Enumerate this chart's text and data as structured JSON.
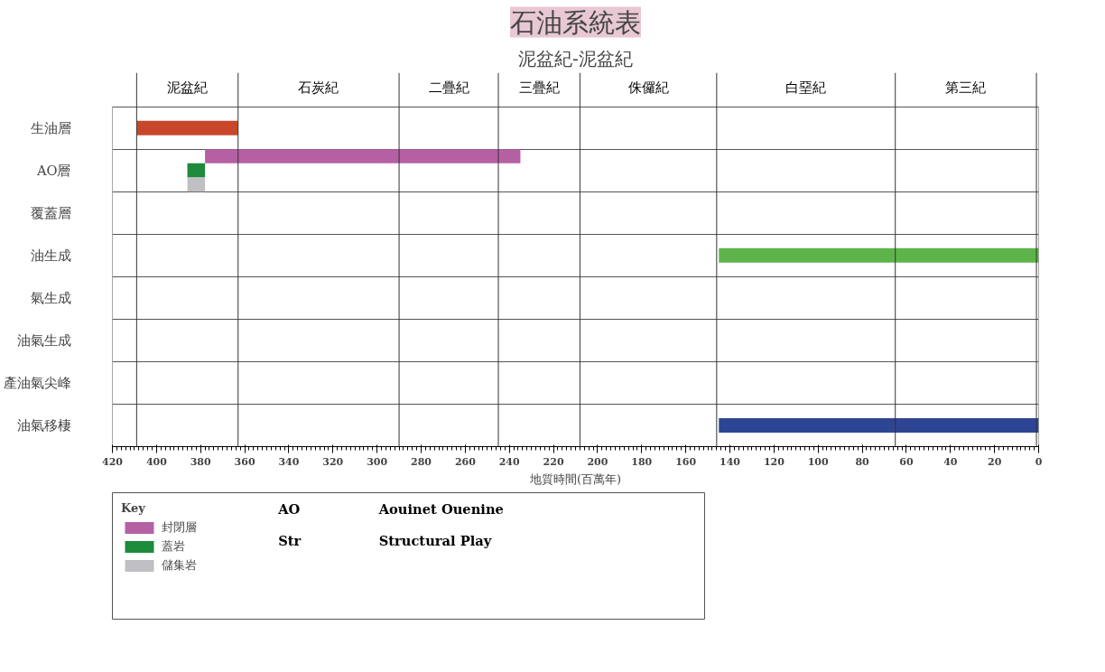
{
  "chart_data": {
    "type": "bar",
    "orientation": "horizontal",
    "title": "石油系統表",
    "subtitle": "泥盆紀-泥盆紀",
    "xlabel": "地質時間(百萬年)",
    "legend_title": "Key",
    "legend": "bottom left",
    "grid": "y",
    "categories": [
      "生油層",
      "AO層",
      "覆蓋層",
      "油生成",
      "氣生成",
      "油氣生成",
      "產油氣尖峰",
      "油氣移棲"
    ],
    "series": [
      {
        "color": "#c8472a",
        "values": [
          46,
          null,
          null,
          null,
          null,
          null,
          null,
          null
        ],
        "base": [
          363,
          null,
          null,
          null,
          null,
          null,
          null,
          null
        ]
      },
      {
        "name": "封閉層",
        "color": "#b660a4",
        "values": [
          null,
          143,
          null,
          null,
          null,
          null,
          null,
          null
        ],
        "base": [
          null,
          235,
          null,
          null,
          null,
          null,
          null,
          null
        ]
      },
      {
        "name": "蓋岩",
        "color": "#1e8a3c",
        "values": [
          null,
          8,
          null,
          null,
          null,
          null,
          null,
          null
        ],
        "base": [
          null,
          378,
          null,
          null,
          null,
          null,
          null,
          null
        ]
      },
      {
        "name": "儲集岩",
        "color": "#c0c0c4",
        "values": [
          null,
          8,
          null,
          null,
          null,
          null,
          null,
          null
        ],
        "base": [
          null,
          378,
          null,
          null,
          null,
          null,
          null,
          null
        ]
      },
      {
        "color": "#5db44a",
        "values": [
          null,
          null,
          null,
          145,
          null,
          null,
          null,
          null
        ],
        "base": [
          null,
          null,
          null,
          0,
          null,
          null,
          null,
          null
        ]
      },
      {
        "color": "#2e4593",
        "values": [
          null,
          null,
          null,
          null,
          null,
          null,
          null,
          145
        ],
        "base": [
          null,
          null,
          null,
          null,
          null,
          null,
          null,
          0
        ]
      }
    ],
    "xlim": [
      420,
      0
    ],
    "xticks": [
      420,
      400,
      380,
      360,
      340,
      320,
      300,
      280,
      260,
      240,
      220,
      200,
      180,
      160,
      140,
      120,
      100,
      80,
      60,
      40,
      20,
      0
    ],
    "ref_lines": [
      {
        "axis": "x",
        "value": 409
      },
      {
        "axis": "x",
        "value": 363
      },
      {
        "axis": "x",
        "value": 290
      },
      {
        "axis": "x",
        "value": 245
      },
      {
        "axis": "x",
        "value": 208
      },
      {
        "axis": "x",
        "value": 146
      },
      {
        "axis": "x",
        "value": 65
      },
      {
        "axis": "x",
        "value": 1
      }
    ],
    "annotations": [
      "泥盆紀",
      "石炭紀",
      "二疊紀",
      "三疊紀",
      "侏儸紀",
      "白堊紀",
      "第三紀",
      "AO",
      "Aouinet Ouenine",
      "Str",
      "Structural Play"
    ]
  }
}
